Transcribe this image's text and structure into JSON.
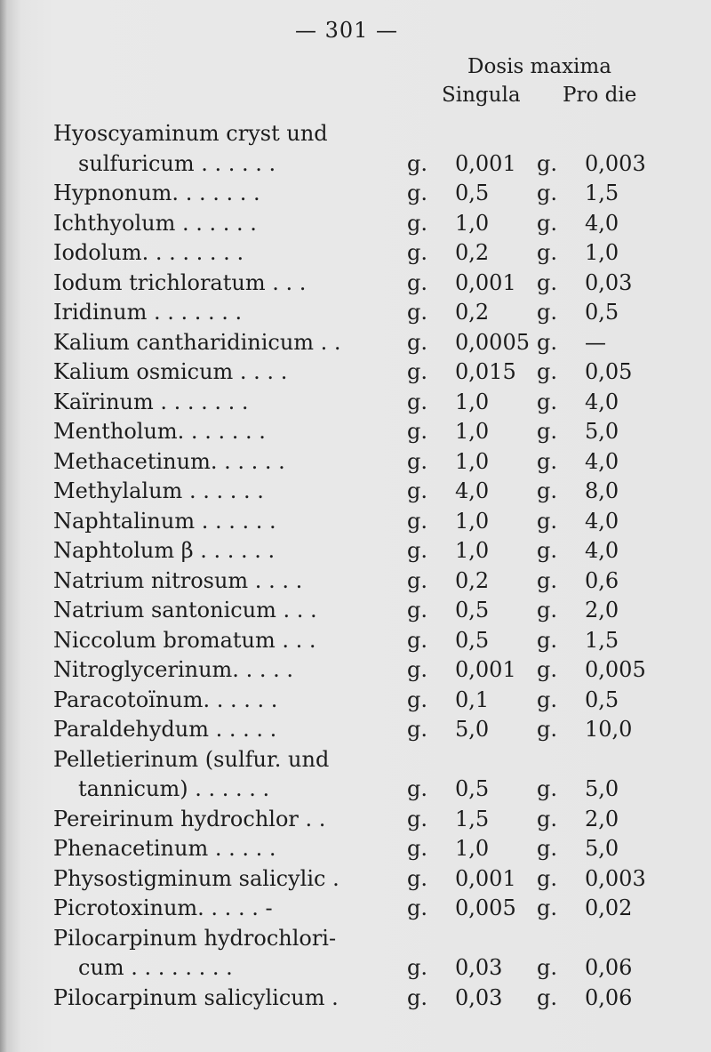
{
  "page_number": "— 301 —",
  "header": {
    "title": "Dosis maxima",
    "col1": "Singula",
    "col2": "Pro die"
  },
  "unit": "g.",
  "rows": [
    {
      "name": "Hyoscyaminum cryst und",
      "indent": false,
      "singula": null,
      "pro_die": null
    },
    {
      "name": "sulfuricum . . . . . .",
      "indent": true,
      "singula": "0,001",
      "pro_die": "0,003"
    },
    {
      "name": "Hypnonum. . . . . . .",
      "indent": false,
      "singula": "0,5",
      "pro_die": "1,5"
    },
    {
      "name": "Ichthyolum . . . . . .",
      "indent": false,
      "singula": "1,0",
      "pro_die": "4,0"
    },
    {
      "name": "Iodolum. . . . . . . .",
      "indent": false,
      "singula": "0,2",
      "pro_die": "1,0"
    },
    {
      "name": "Iodum trichloratum . . .",
      "indent": false,
      "singula": "0,001",
      "pro_die": "0,03"
    },
    {
      "name": "Iridinum . . . . . . .",
      "indent": false,
      "singula": "0,2",
      "pro_die": "0,5"
    },
    {
      "name": "Kalium cantharidinicum . .",
      "indent": false,
      "singula": "0,0005",
      "pro_die": "—"
    },
    {
      "name": "Kalium osmicum . . . .",
      "indent": false,
      "singula": "0,015",
      "pro_die": "0,05"
    },
    {
      "name": "Kaïrinum . . . . . . .",
      "indent": false,
      "singula": "1,0",
      "pro_die": "4,0"
    },
    {
      "name": "Mentholum. . . . . . .",
      "indent": false,
      "singula": "1,0",
      "pro_die": "5,0"
    },
    {
      "name": "Methacetinum. . . . . .",
      "indent": false,
      "singula": "1,0",
      "pro_die": "4,0"
    },
    {
      "name": "Methylalum . . . . . .",
      "indent": false,
      "singula": "4,0",
      "pro_die": "8,0"
    },
    {
      "name": "Naphtalinum . . . . . .",
      "indent": false,
      "singula": "1,0",
      "pro_die": "4,0"
    },
    {
      "name": "Naphtolum β . . . . . .",
      "indent": false,
      "singula": "1,0",
      "pro_die": "4,0"
    },
    {
      "name": "Natrium nitrosum . . . .",
      "indent": false,
      "singula": "0,2",
      "pro_die": "0,6"
    },
    {
      "name": "Natrium santonicum . . .",
      "indent": false,
      "singula": "0,5",
      "pro_die": "2,0"
    },
    {
      "name": "Niccolum bromatum . . .",
      "indent": false,
      "singula": "0,5",
      "pro_die": "1,5"
    },
    {
      "name": "Nitroglycerinum. . . . .",
      "indent": false,
      "singula": "0,001",
      "pro_die": "0,005"
    },
    {
      "name": "Paracotoïnum. . . . . .",
      "indent": false,
      "singula": "0,1",
      "pro_die": "0,5"
    },
    {
      "name": "Paraldehydum . . . . .",
      "indent": false,
      "singula": "5,0",
      "pro_die": "10,0"
    },
    {
      "name": "Pelletierinum (sulfur. und",
      "indent": false,
      "singula": null,
      "pro_die": null
    },
    {
      "name": "tannicum) . . . . . .",
      "indent": true,
      "singula": "0,5",
      "pro_die": "5,0"
    },
    {
      "name": "Pereirinum hydrochlor . .",
      "indent": false,
      "singula": "1,5",
      "pro_die": "2,0"
    },
    {
      "name": "Phenacetinum . . . . .",
      "indent": false,
      "singula": "1,0",
      "pro_die": "5,0"
    },
    {
      "name": "Physostigminum salicylic .",
      "indent": false,
      "singula": "0,001",
      "pro_die": "0,003"
    },
    {
      "name": "Picrotoxinum. . . . . -",
      "indent": false,
      "singula": "0,005",
      "pro_die": "0,02"
    },
    {
      "name": "Pilocarpinum hydrochlori-",
      "indent": false,
      "singula": null,
      "pro_die": null
    },
    {
      "name": "cum . . . . . . . .",
      "indent": true,
      "singula": "0,03",
      "pro_die": "0,06"
    },
    {
      "name": "Pilocarpinum salicylicum .",
      "indent": false,
      "singula": "0,03",
      "pro_die": "0,06"
    }
  ]
}
